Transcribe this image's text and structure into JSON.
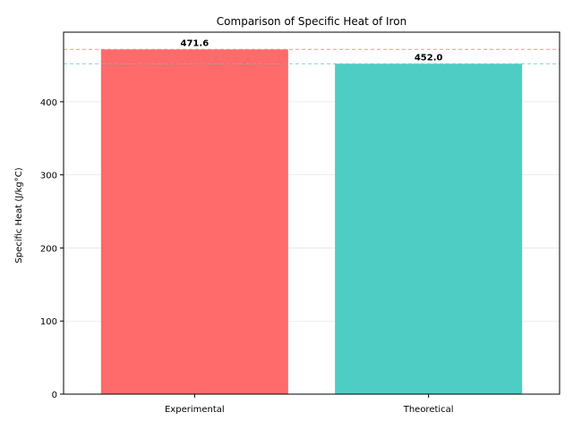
{
  "chart_data": {
    "type": "bar",
    "title": "Comparison of Specific Heat of Iron",
    "xlabel": "",
    "ylabel": "Specific Heat (J/kg°C)",
    "categories": [
      "Experimental",
      "Theoretical"
    ],
    "values": [
      471.6,
      452.0
    ],
    "value_labels": [
      "471.6",
      "452.0"
    ],
    "colors": [
      "#ff6b6b",
      "#4ecdc4"
    ],
    "reference_lines": [
      {
        "value": 471.6,
        "color": "#ff6b6b",
        "style": "dashed"
      },
      {
        "value": 452.0,
        "color": "#4ecdc4",
        "style": "dashed"
      }
    ],
    "ylim": [
      0,
      495.2
    ],
    "yticks": [
      0,
      100,
      200,
      300,
      400
    ],
    "ytick_labels": [
      "0",
      "100",
      "200",
      "300",
      "400"
    ],
    "grid": "y",
    "legend": "none"
  }
}
